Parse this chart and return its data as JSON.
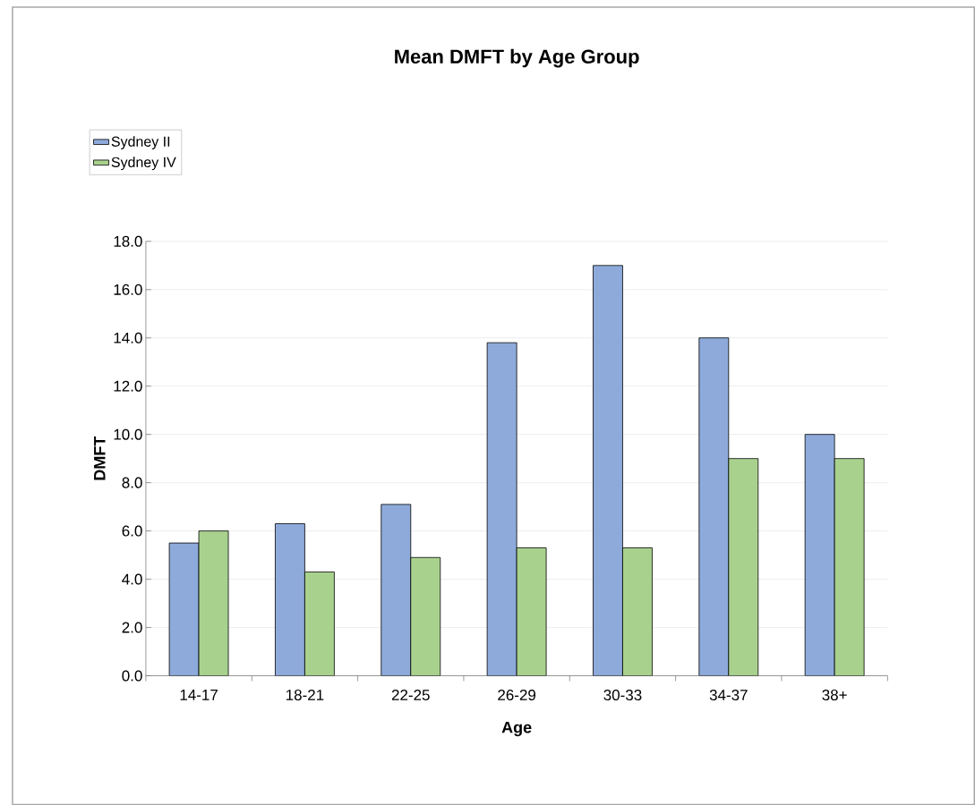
{
  "chart_data": {
    "type": "bar",
    "title": "Mean DMFT by Age Group",
    "xlabel": "Age",
    "ylabel": "DMFT",
    "categories": [
      "14-17",
      "18-21",
      "22-25",
      "26-29",
      "30-33",
      "34-37",
      "38+"
    ],
    "series": [
      {
        "name": "Sydney II",
        "color": "#8eaadb",
        "values": [
          5.5,
          6.3,
          7.1,
          13.8,
          17.0,
          14.0,
          10.0
        ]
      },
      {
        "name": "Sydney IV",
        "color": "#a9d18e",
        "values": [
          6.0,
          4.3,
          4.9,
          5.3,
          5.3,
          9.0,
          9.0
        ]
      }
    ],
    "ylim": [
      0,
      18
    ],
    "yticks": [
      {
        "value": 0,
        "label": "0.0"
      },
      {
        "value": 2,
        "label": "2.0"
      },
      {
        "value": 4,
        "label": "4.0"
      },
      {
        "value": 6,
        "label": "6.0"
      },
      {
        "value": 8,
        "label": "8.0"
      },
      {
        "value": 10,
        "label": "10.0"
      },
      {
        "value": 12,
        "label": "12.0"
      },
      {
        "value": 14,
        "label": "14.0"
      },
      {
        "value": 16,
        "label": "16.0"
      },
      {
        "value": 18,
        "label": "18.0"
      }
    ],
    "grid": "y",
    "legend": "top left"
  }
}
